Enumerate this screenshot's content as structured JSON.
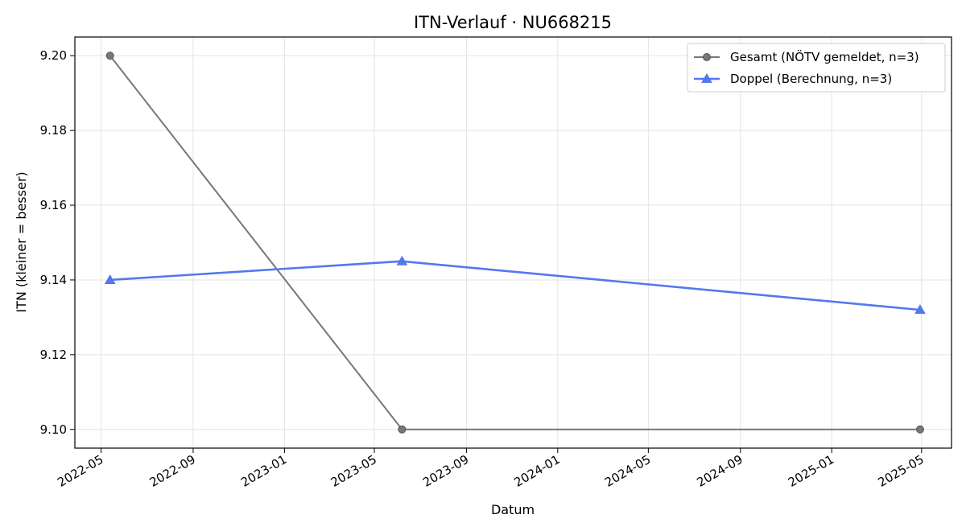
{
  "chart_data": {
    "type": "line",
    "title": "ITN-Verlauf · NU668215",
    "xlabel": "Datum",
    "ylabel": "ITN  (kleiner = besser)",
    "x_axis_type": "date",
    "xlim": [
      "2022-03-27",
      "2025-06-10"
    ],
    "ylim": [
      9.095,
      9.205
    ],
    "x_ticks": [
      "2022-05-01",
      "2022-09-01",
      "2023-01-01",
      "2023-05-01",
      "2023-09-01",
      "2024-01-01",
      "2024-05-01",
      "2024-09-01",
      "2025-01-01",
      "2025-05-01"
    ],
    "x_tick_labels": [
      "2022-05",
      "2022-09",
      "2023-01",
      "2023-05",
      "2023-09",
      "2024-01",
      "2024-05",
      "2024-09",
      "2025-01",
      "2025-05"
    ],
    "y_ticks": [
      9.1,
      9.12,
      9.14,
      9.16,
      9.18,
      9.2
    ],
    "y_tick_labels": [
      "9.10",
      "9.12",
      "9.14",
      "9.16",
      "9.18",
      "9.20"
    ],
    "grid": true,
    "legend_position": "top-right",
    "series": [
      {
        "name": "Gesamt (NÖTV gemeldet, n=3)",
        "color": "#777777",
        "marker": "circle",
        "x": [
          "2022-05-13",
          "2023-06-07",
          "2025-04-29"
        ],
        "y": [
          9.2,
          9.1,
          9.1
        ]
      },
      {
        "name": "Doppel (Berechnung, n=3)",
        "color": "#5577ee",
        "marker": "triangle",
        "x": [
          "2022-05-13",
          "2023-06-07",
          "2025-04-29"
        ],
        "y": [
          9.14,
          9.145,
          9.132
        ]
      }
    ]
  }
}
